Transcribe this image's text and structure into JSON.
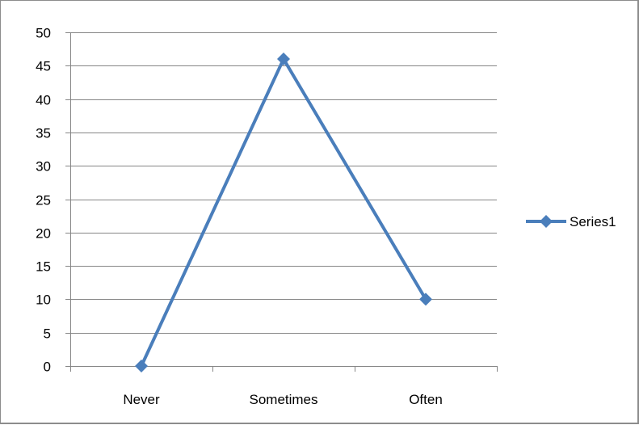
{
  "chart_data": {
    "type": "line",
    "title": "",
    "xlabel": "",
    "ylabel": "",
    "categories": [
      "Never",
      "Sometimes",
      "Often"
    ],
    "series": [
      {
        "name": "Series1",
        "values": [
          0,
          46,
          10
        ],
        "color": "#4a7ebb",
        "marker": "diamond"
      }
    ],
    "ylim": [
      0,
      50
    ],
    "ytick_step": 5,
    "grid": true,
    "legend_position": "right",
    "gridline_color": "#868686",
    "axis_color": "#868686"
  }
}
